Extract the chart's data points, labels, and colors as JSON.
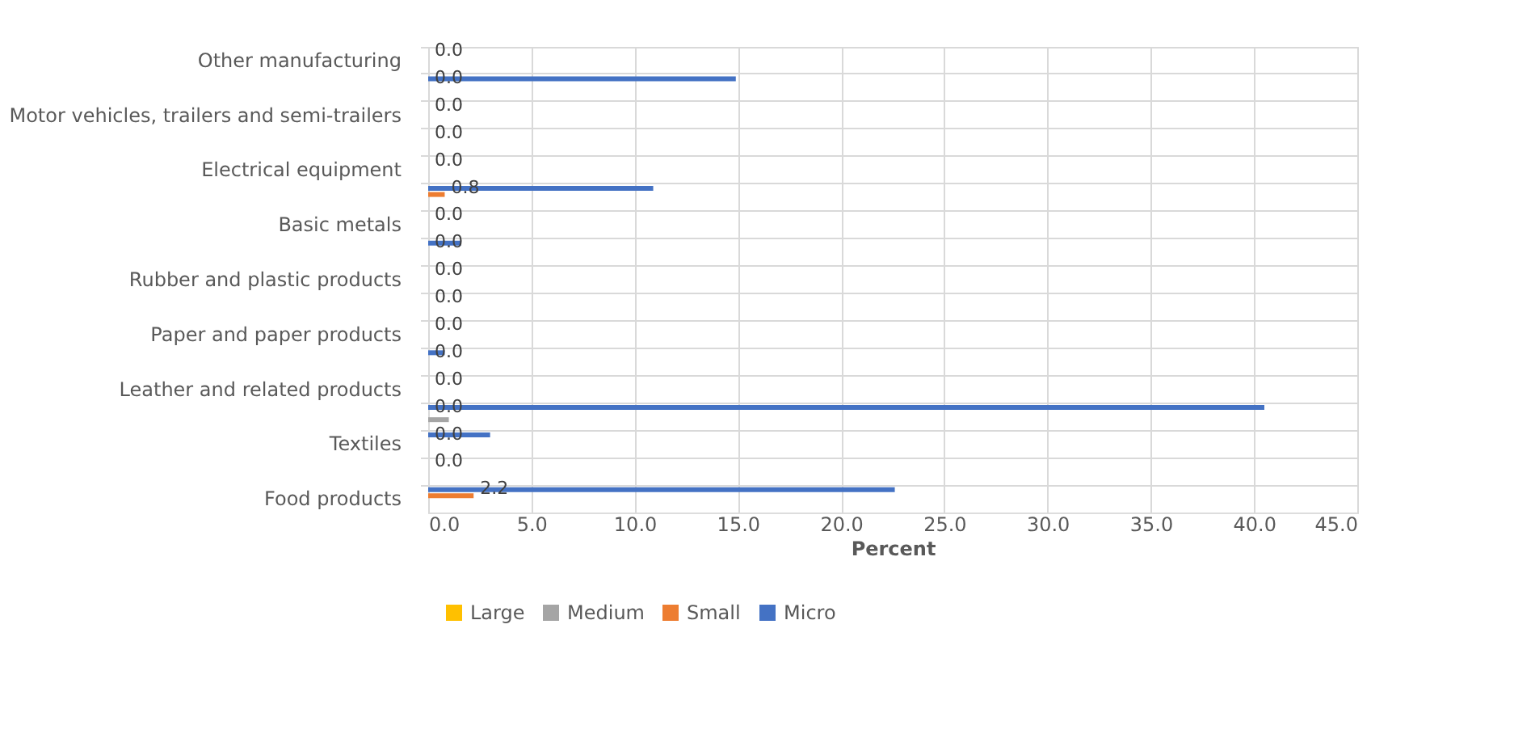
{
  "chart_data": {
    "type": "bar",
    "orientation": "horizontal",
    "xlabel": "Percent",
    "categories": [
      "Other manufacturing",
      null,
      "Motor vehicles, trailers and semi-trailers",
      null,
      "Electrical equipment",
      null,
      "Basic metals",
      null,
      "Rubber and plastic products",
      null,
      "Paper and paper products",
      null,
      "Leather and related products",
      null,
      "Textiles",
      null,
      "Food products"
    ],
    "series": [
      {
        "name": "Large",
        "color": "#ffc000",
        "values": [
          0,
          0,
          0,
          0,
          0,
          0,
          0,
          0,
          0,
          0,
          0,
          0,
          0,
          0,
          0,
          0,
          0
        ]
      },
      {
        "name": "Medium",
        "color": "#a5a5a5",
        "values": [
          0,
          0,
          0,
          0,
          0,
          0,
          0,
          0,
          0,
          0,
          0,
          0,
          0,
          1.0,
          0,
          0,
          0
        ]
      },
      {
        "name": "Small",
        "color": "#ed7d31",
        "values": [
          0,
          0,
          0,
          0,
          0,
          0.8,
          0,
          0,
          0,
          0,
          0,
          0,
          0,
          0,
          0,
          0,
          2.2
        ],
        "value_labels": [
          "0.0",
          "0.0",
          "0.0",
          "0.0",
          "0.0",
          "0.8",
          "0.0",
          "0.0",
          "0.0",
          "0.0",
          "0.0",
          "0.0",
          "0.0",
          "0.0",
          "0.0",
          "0.0",
          "2.2"
        ]
      },
      {
        "name": "Micro",
        "color": "#4472c4",
        "values": [
          0,
          14.9,
          0,
          0,
          0,
          10.9,
          0,
          1.6,
          0,
          0,
          0,
          0.8,
          0,
          40.5,
          3.0,
          0,
          22.6
        ]
      }
    ],
    "xlim": [
      0,
      45
    ],
    "xticks": [
      {
        "value": 0,
        "label": "0.0"
      },
      {
        "value": 5,
        "label": "5.0"
      },
      {
        "value": 10,
        "label": "10.0"
      },
      {
        "value": 15,
        "label": "15.0"
      },
      {
        "value": 20,
        "label": "20.0"
      },
      {
        "value": 25,
        "label": "25.0"
      },
      {
        "value": 30,
        "label": "30.0"
      },
      {
        "value": 35,
        "label": "35.0"
      },
      {
        "value": 40,
        "label": "40.0"
      },
      {
        "value": 45,
        "label": "45.0"
      }
    ],
    "grid": true,
    "legend": "bottom"
  }
}
